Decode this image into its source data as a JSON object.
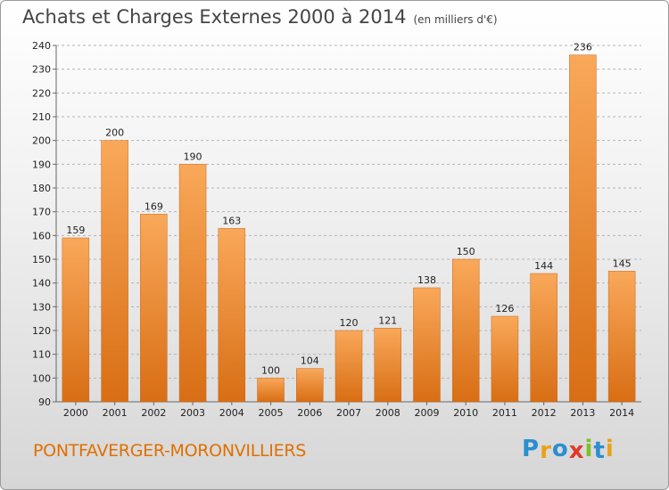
{
  "title": "Achats et Charges Externes 2000 à 2014",
  "unit": "(en milliers d'€)",
  "commune": "PONTFAVERGER-MORONVILLIERS",
  "logo": {
    "letters": [
      "P",
      "r",
      "o",
      "x",
      "i",
      "t",
      "i"
    ],
    "colors": [
      "#2a8fd0",
      "#e8a21a",
      "#2a8fd0",
      "#e03a2a",
      "#7fbf2a",
      "#2a8fd0",
      "#e8a21a"
    ]
  },
  "chart_data": {
    "type": "bar",
    "categories": [
      "2000",
      "2001",
      "2002",
      "2003",
      "2004",
      "2005",
      "2006",
      "2007",
      "2008",
      "2009",
      "2010",
      "2011",
      "2012",
      "2013",
      "2014"
    ],
    "values": [
      159,
      200,
      169,
      190,
      163,
      100,
      104,
      120,
      121,
      138,
      150,
      126,
      144,
      236,
      145
    ],
    "title": "Achats et Charges Externes 2000 à 2014",
    "xlabel": "",
    "ylabel": "",
    "ylim": [
      90,
      240
    ],
    "yticks": [
      90,
      100,
      110,
      120,
      130,
      140,
      150,
      160,
      170,
      180,
      190,
      200,
      210,
      220,
      230,
      240
    ],
    "grid": true,
    "bar_color": "#f0913a"
  }
}
